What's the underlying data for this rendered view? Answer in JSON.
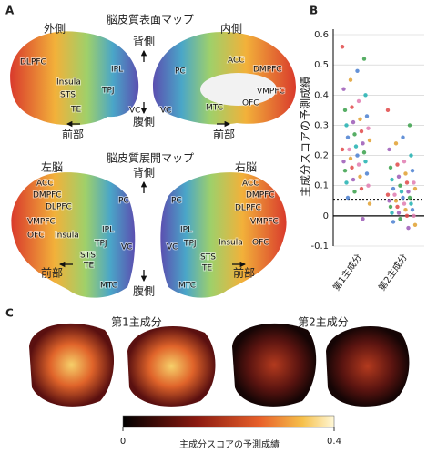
{
  "panel_labels": [
    "A",
    "B",
    "C"
  ],
  "panel_a": {
    "surface_title": "脳皮質表面マップ",
    "lateral": "外側",
    "medial": "内側",
    "flat_title": "脳皮質展開マップ",
    "left_hemisphere": "左脳",
    "right_hemisphere": "右脳",
    "dorsal": "背側",
    "ventral": "腹側",
    "anterior": "前部",
    "surface_labels": [
      "DLPFC",
      "Insula",
      "STS",
      "TE",
      "IPL",
      "TPJ",
      "VC",
      "PC",
      "ACC",
      "DMPFC",
      "VMPFC",
      "OFC",
      "MTC",
      "VC"
    ],
    "flat_labels": [
      "ACC",
      "DMPFC",
      "DLPFC",
      "VMPFC",
      "OFC",
      "Insula",
      "PC",
      "IPL",
      "TPJ",
      "STS",
      "TE",
      "VC",
      "MTC",
      "PC",
      "ACC",
      "DMPFC",
      "DLPFC",
      "VMPFC",
      "IPL",
      "TPJ",
      "STS",
      "TE",
      "Insula",
      "OFC",
      "VC",
      "MTC"
    ]
  },
  "chart_data": {
    "type": "strip",
    "y_label": "主成分スコアの予測成績",
    "categories": [
      "第1主成分",
      "第2主成分"
    ],
    "values": [
      [
        0.56,
        0.52,
        0.48,
        0.45,
        0.42,
        0.4,
        0.38,
        0.36,
        0.35,
        0.33,
        0.32,
        0.31,
        0.3,
        0.29,
        0.28,
        0.27,
        0.26,
        0.25,
        0.24,
        0.23,
        0.22,
        0.22,
        0.21,
        0.2,
        0.19,
        0.18,
        0.18,
        0.17,
        0.16,
        0.15,
        0.14,
        0.13,
        0.12,
        0.11,
        0.1,
        0.09,
        0.08,
        0.06,
        0.04,
        -0.01
      ],
      [
        0.35,
        0.3,
        0.26,
        0.24,
        0.22,
        0.2,
        0.18,
        0.17,
        0.16,
        0.15,
        0.14,
        0.13,
        0.12,
        0.11,
        0.11,
        0.1,
        0.09,
        0.09,
        0.08,
        0.08,
        0.07,
        0.07,
        0.06,
        0.06,
        0.05,
        0.05,
        0.04,
        0.04,
        0.03,
        0.03,
        0.02,
        0.02,
        0.01,
        0.01,
        0.0,
        0.0,
        -0.01,
        -0.02,
        -0.03,
        -0.04
      ]
    ],
    "colors": [
      "#e04848",
      "#3aa04a",
      "#4a7fd0",
      "#e0a030",
      "#9b59b6",
      "#20b0b0",
      "#e07bb0"
    ],
    "ylim": [
      -0.1,
      0.6
    ],
    "yticks": [
      -0.1,
      0,
      0.1,
      0.2,
      0.3,
      0.4,
      0.5,
      0.6
    ],
    "grid": true,
    "reference_line": 0.055
  },
  "panel_c": {
    "titles": [
      "第1主成分",
      "第2主成分"
    ],
    "colorbar": {
      "title": "主成分スコアの予測成績",
      "range": [
        0,
        0.4
      ],
      "ticks": [
        0,
        0.4
      ]
    }
  }
}
